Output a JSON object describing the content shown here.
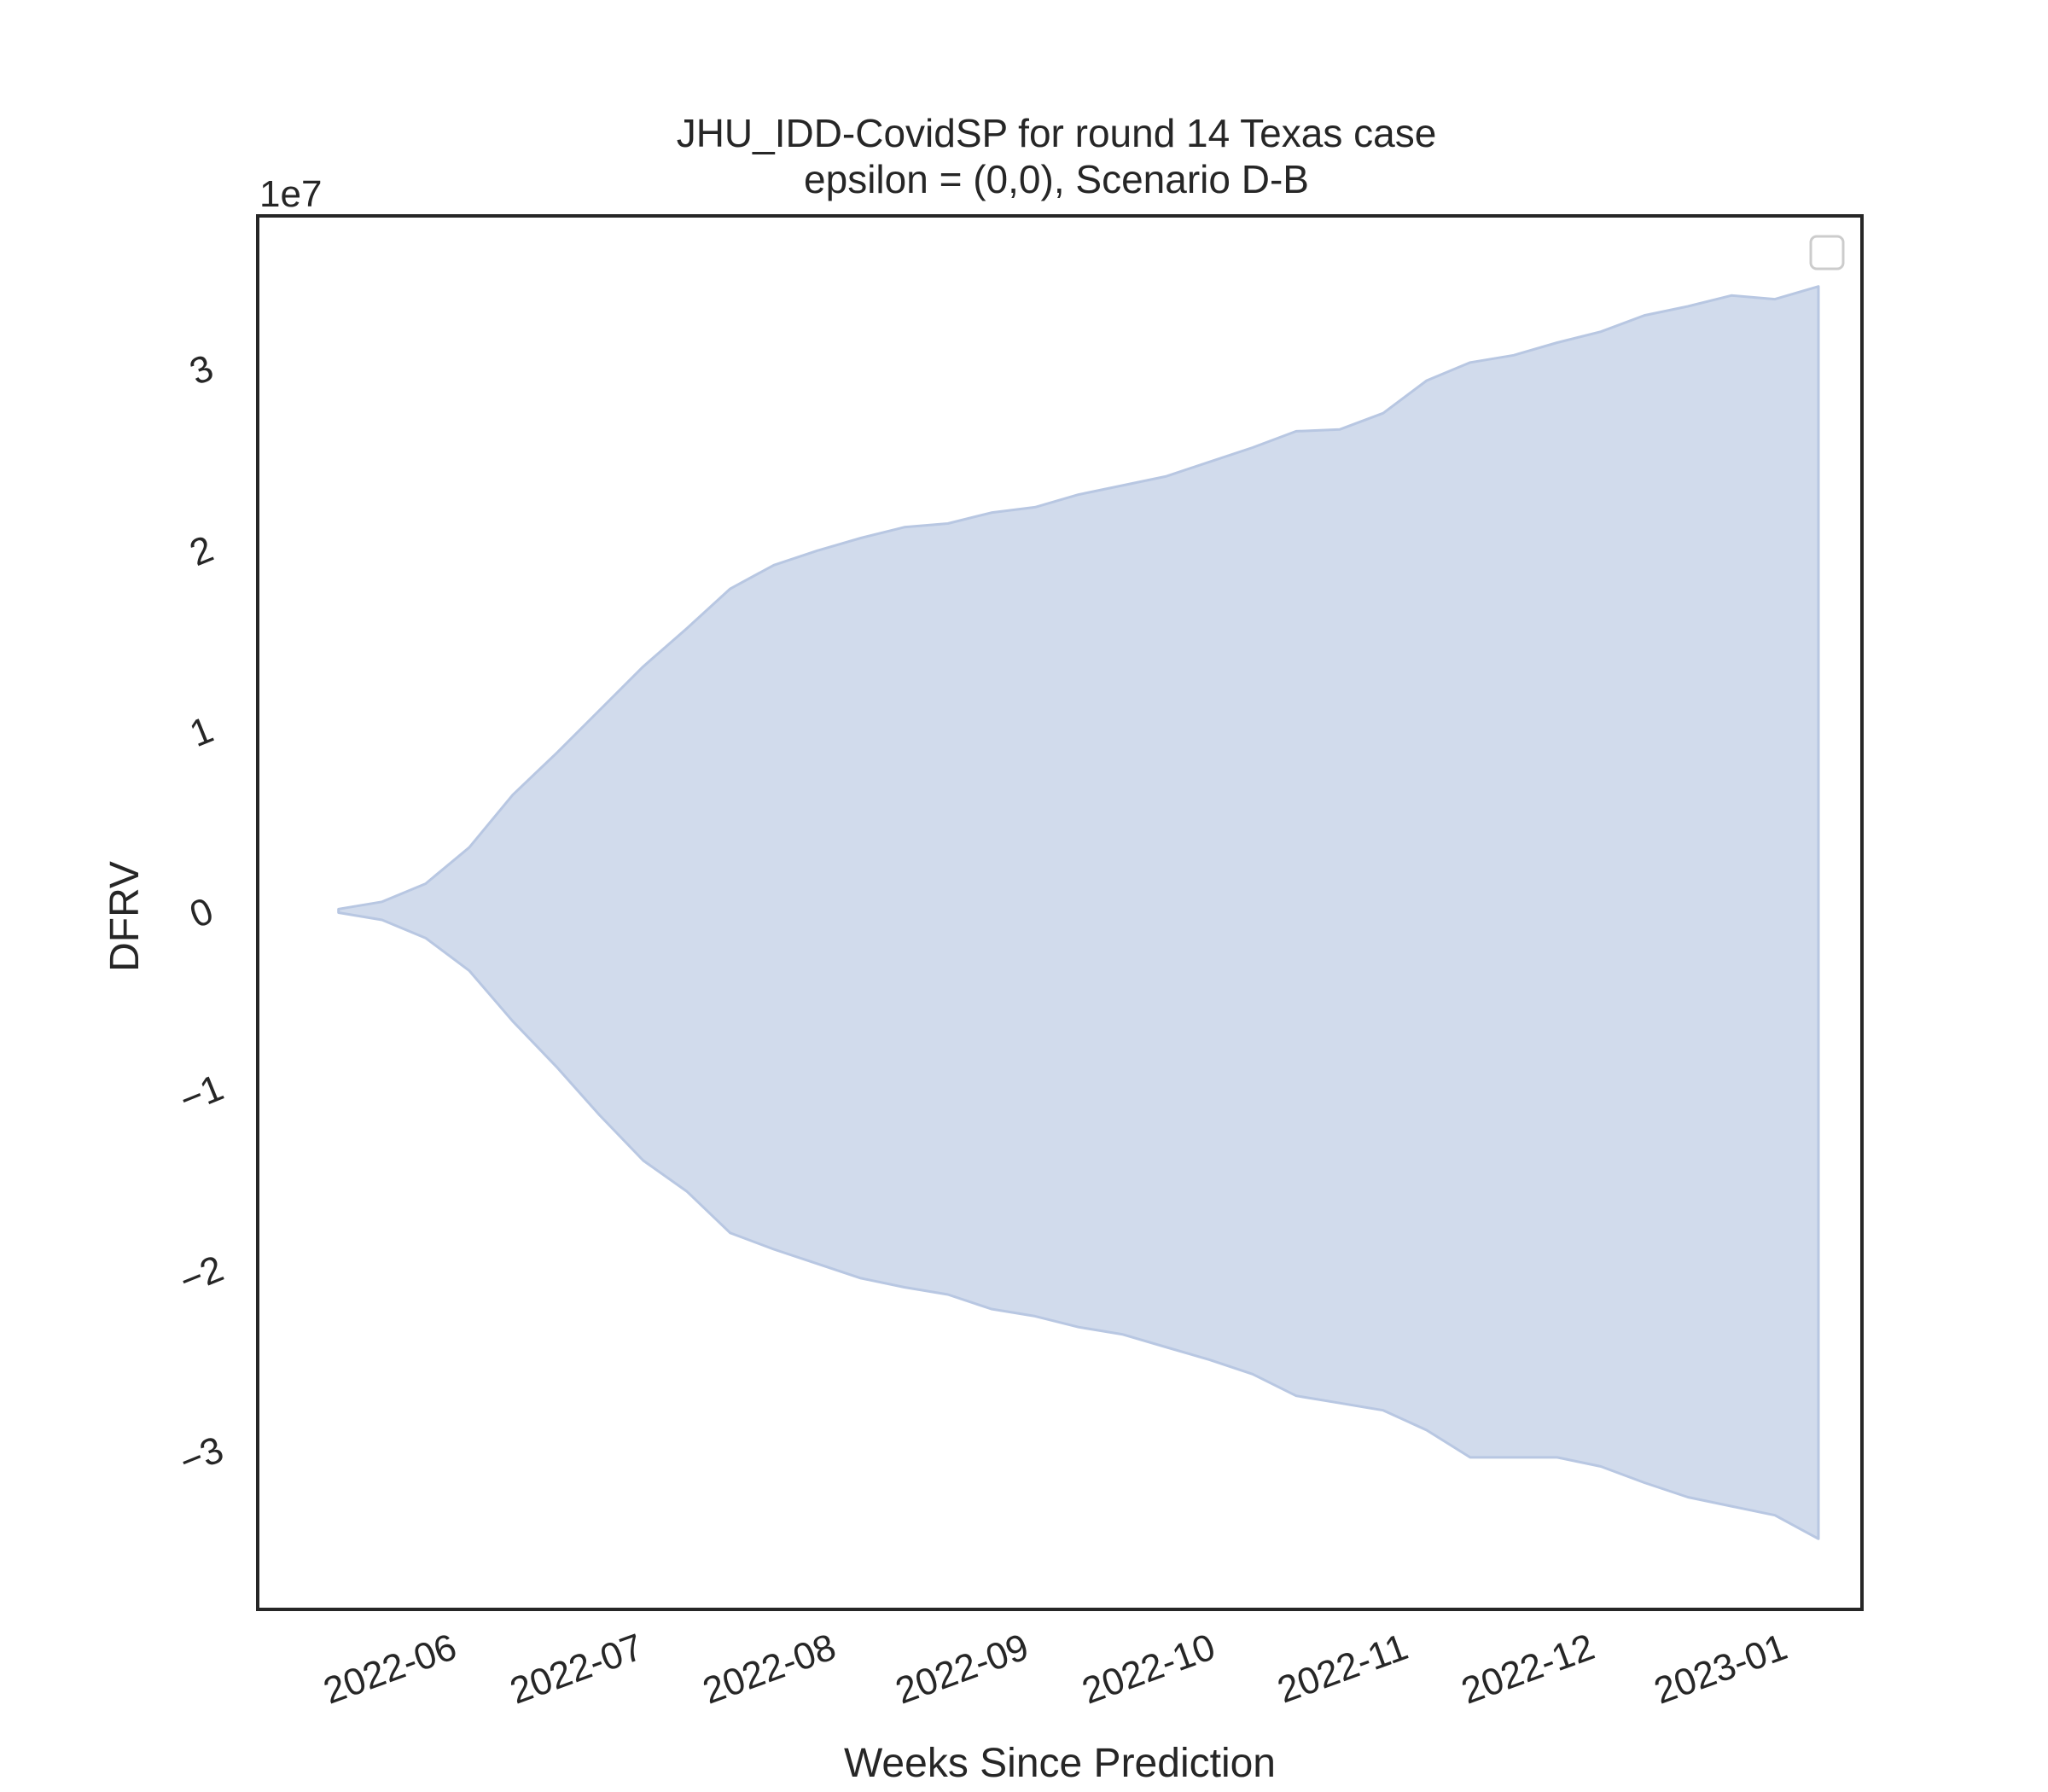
{
  "chart_data": {
    "type": "area",
    "title": "JHU_IDD-CovidSP for round 14 Texas case",
    "subtitle": "epsilon = (0,0), Scenario D-B",
    "xlabel": "Weeks Since Prediction",
    "ylabel": "DFRV",
    "y_offset_label": "1e7",
    "y_multiplier": 10000000,
    "ylim": [
      -38500000,
      38500000
    ],
    "xlim": [
      "2022-05-01",
      "2023-01-14"
    ],
    "y_ticks": [
      -3,
      -2,
      -1,
      0,
      1,
      2,
      3
    ],
    "y_tick_labels": [
      "−3",
      "−2",
      "−1",
      "0",
      "1",
      "2",
      "3"
    ],
    "x_ticks": [
      "2022-06-01",
      "2022-07-01",
      "2022-08-01",
      "2022-09-01",
      "2022-10-01",
      "2022-11-01",
      "2022-12-01",
      "2023-01-01"
    ],
    "x_tick_labels": [
      "2022-06",
      "2022-07",
      "2022-08",
      "2022-09",
      "2022-10",
      "2022-11",
      "2022-12",
      "2023-01"
    ],
    "legend": "upper right (empty)",
    "grid": false,
    "fill_color": "#d1dbec",
    "edge_color": "#b8c7e2",
    "series": [
      {
        "dates": [
          "2022-05-14",
          "2022-05-21",
          "2022-05-28",
          "2022-06-04",
          "2022-06-11",
          "2022-06-18",
          "2022-06-25",
          "2022-07-02",
          "2022-07-09",
          "2022-07-16",
          "2022-07-23",
          "2022-07-30",
          "2022-08-06",
          "2022-08-13",
          "2022-08-20",
          "2022-08-27",
          "2022-09-03",
          "2022-09-10",
          "2022-09-17",
          "2022-09-24",
          "2022-10-01",
          "2022-10-08",
          "2022-10-15",
          "2022-10-22",
          "2022-10-29",
          "2022-11-05",
          "2022-11-12",
          "2022-11-19",
          "2022-11-26",
          "2022-12-03",
          "2022-12-10",
          "2022-12-17",
          "2022-12-24",
          "2022-12-31",
          "2023-01-07"
        ],
        "upper": [
          200000,
          600000,
          1600000,
          3600000,
          6500000,
          8800000,
          11200000,
          13600000,
          15700000,
          17900000,
          19200000,
          20000000,
          20700000,
          21300000,
          21500000,
          22100000,
          22400000,
          23100000,
          23600000,
          24100000,
          24900000,
          25700000,
          26600000,
          26700000,
          27600000,
          29400000,
          30400000,
          30800000,
          31500000,
          32100000,
          33000000,
          33500000,
          34100000,
          33900000,
          34600000
        ],
        "lower": [
          0,
          -400000,
          -1400000,
          -3200000,
          -6000000,
          -8500000,
          -11200000,
          -13700000,
          -15400000,
          -17700000,
          -18600000,
          -19400000,
          -20200000,
          -20700000,
          -21100000,
          -21900000,
          -22300000,
          -22900000,
          -23300000,
          -24000000,
          -24700000,
          -25500000,
          -26700000,
          -27100000,
          -27500000,
          -28600000,
          -30100000,
          -30100000,
          -30100000,
          -30600000,
          -31500000,
          -32300000,
          -32800000,
          -33300000,
          -34600000
        ]
      }
    ]
  }
}
